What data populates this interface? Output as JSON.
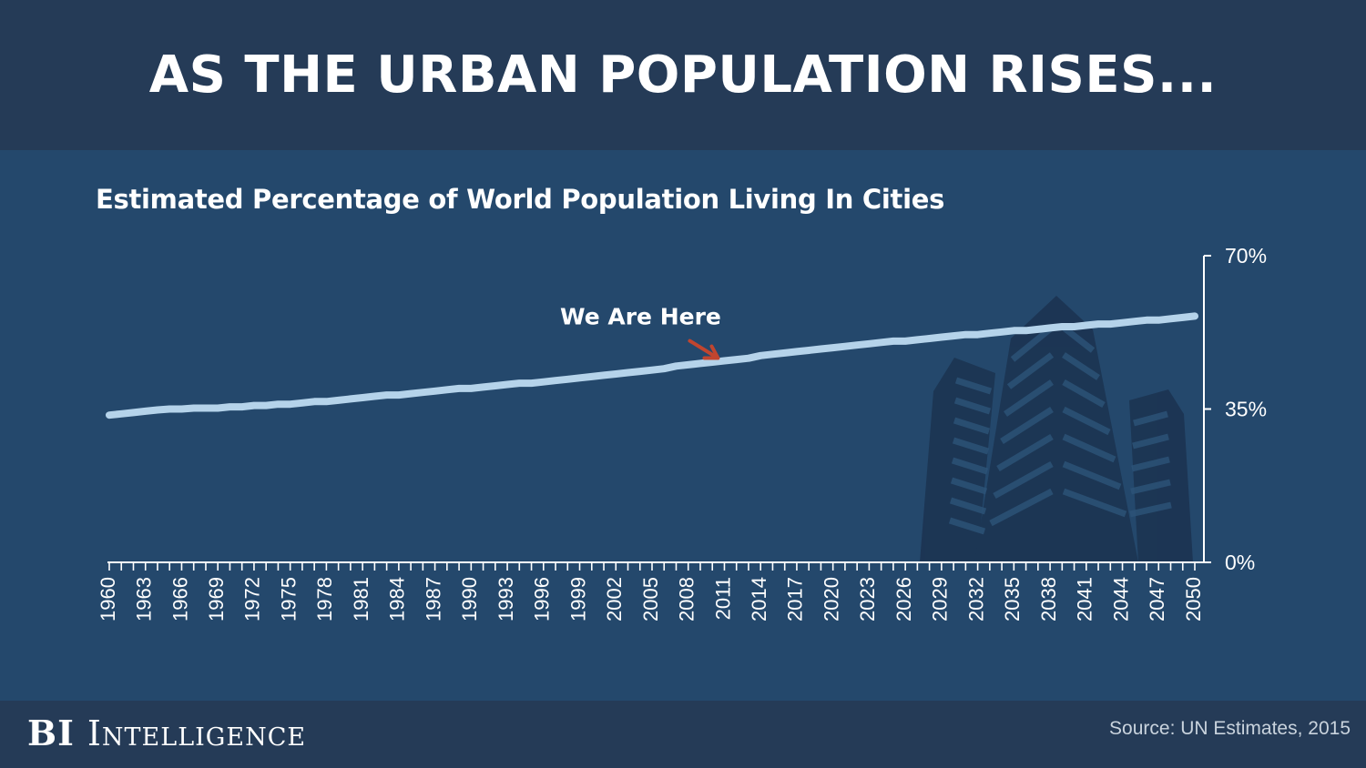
{
  "header": {
    "title": "AS THE URBAN POPULATION RISES..."
  },
  "footer": {
    "brand_bi": "BI",
    "brand_intel": "Intelligence",
    "source": "Source: UN Estimates, 2015"
  },
  "colors": {
    "background": "#24486c",
    "band": "#253b57",
    "line": "#b5d3ea",
    "arrow": "#c0452f",
    "buildings": "#1b3350"
  },
  "chart_data": {
    "type": "line",
    "title": "Estimated Percentage of World Population Living In Cities",
    "xlabel": "",
    "ylabel": "",
    "ylim": [
      0,
      70
    ],
    "y_ticks": [
      "0%",
      "35%",
      "70%"
    ],
    "y_tick_values": [
      0,
      35,
      70
    ],
    "x_tick_labels": [
      "1960",
      "1963",
      "1966",
      "1969",
      "1972",
      "1975",
      "1978",
      "1981",
      "1984",
      "1987",
      "1990",
      "1993",
      "1996",
      "1999",
      "2002",
      "2005",
      "2008",
      "2011",
      "2014",
      "2017",
      "2020",
      "2023",
      "2026",
      "2029",
      "2032",
      "2035",
      "2038",
      "2041",
      "2044",
      "2047",
      "2050"
    ],
    "grid": false,
    "annotation": {
      "text": "We Are Here",
      "year": 2011
    },
    "series": [
      {
        "x": [
          1960,
          1961,
          1962,
          1963,
          1964,
          1965,
          1966,
          1967,
          1968,
          1969,
          1970,
          1971,
          1972,
          1973,
          1974,
          1975,
          1976,
          1977,
          1978,
          1979,
          1980,
          1981,
          1982,
          1983,
          1984,
          1985,
          1986,
          1987,
          1988,
          1989,
          1990,
          1991,
          1992,
          1993,
          1994,
          1995,
          1996,
          1997,
          1998,
          1999,
          2000,
          2001,
          2002,
          2003,
          2004,
          2005,
          2006,
          2007,
          2008,
          2009,
          2010,
          2011,
          2012,
          2013,
          2014,
          2015,
          2016,
          2017,
          2018,
          2019,
          2020,
          2021,
          2022,
          2023,
          2024,
          2025,
          2026,
          2027,
          2028,
          2029,
          2030,
          2031,
          2032,
          2033,
          2034,
          2035,
          2036,
          2037,
          2038,
          2039,
          2040,
          2041,
          2042,
          2043,
          2044,
          2045,
          2046,
          2047,
          2048,
          2049,
          2050
        ],
        "values": [
          33.6,
          33.9,
          34.2,
          34.5,
          34.8,
          35.0,
          35.0,
          35.2,
          35.2,
          35.2,
          35.5,
          35.5,
          35.8,
          35.8,
          36.1,
          36.1,
          36.4,
          36.7,
          36.7,
          37.0,
          37.3,
          37.6,
          37.9,
          38.2,
          38.2,
          38.5,
          38.8,
          39.1,
          39.4,
          39.7,
          39.7,
          40.0,
          40.3,
          40.6,
          40.9,
          40.9,
          41.2,
          41.5,
          41.8,
          42.1,
          42.4,
          42.7,
          43.0,
          43.3,
          43.6,
          43.9,
          44.2,
          44.8,
          45.1,
          45.4,
          45.7,
          46.0,
          46.3,
          46.6,
          47.2,
          47.5,
          47.8,
          48.1,
          48.4,
          48.7,
          49.0,
          49.3,
          49.6,
          49.9,
          50.2,
          50.5,
          50.5,
          50.8,
          51.1,
          51.4,
          51.7,
          52.0,
          52.0,
          52.3,
          52.6,
          52.9,
          52.9,
          53.2,
          53.5,
          53.8,
          53.8,
          54.1,
          54.4,
          54.4,
          54.7,
          55.0,
          55.3,
          55.3,
          55.6,
          55.9,
          56.2
        ]
      }
    ]
  }
}
